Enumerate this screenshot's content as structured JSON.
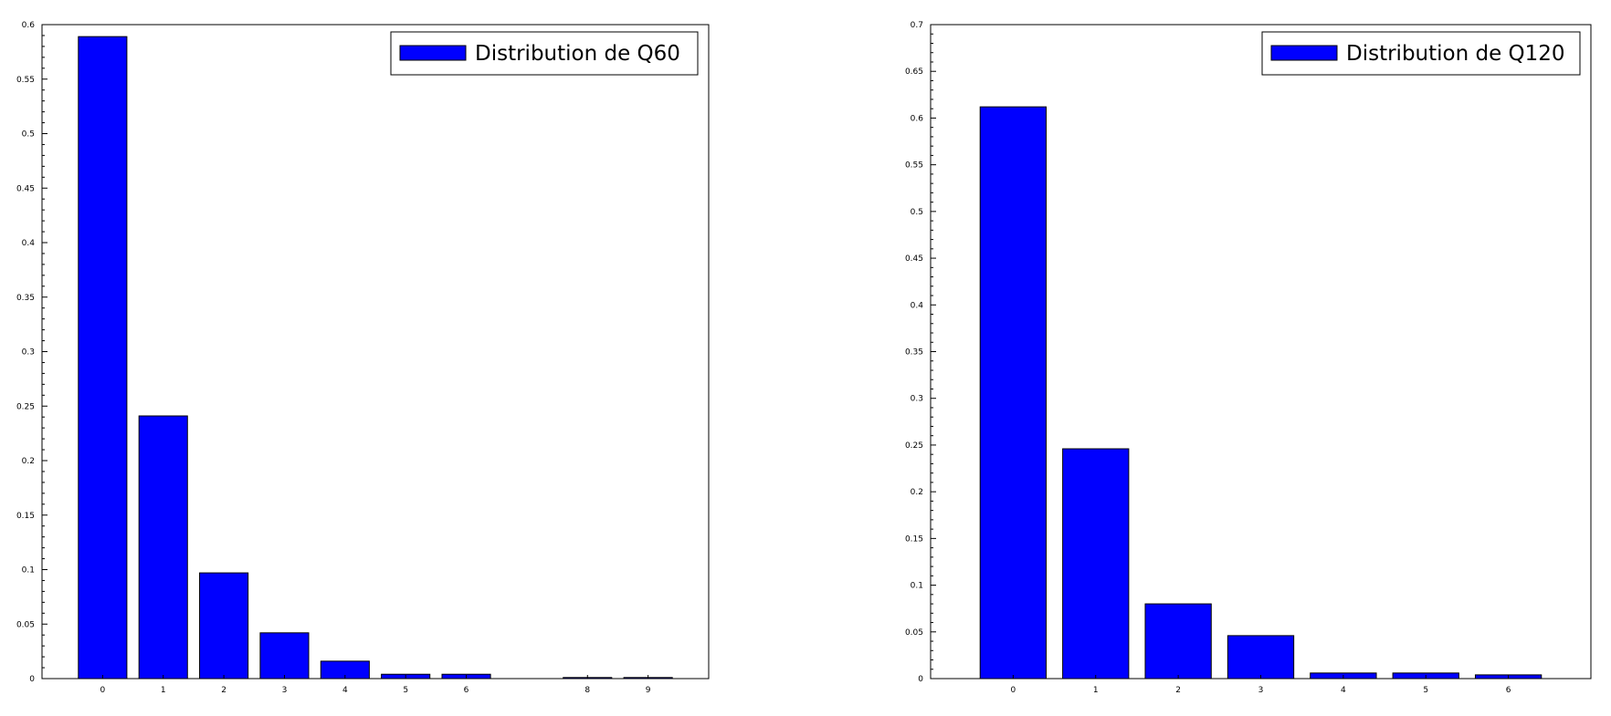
{
  "chart_data": [
    {
      "type": "bar",
      "categories": [
        0,
        1,
        2,
        3,
        4,
        5,
        6,
        8,
        9
      ],
      "x_ticks": [
        "0",
        "1",
        "2",
        "3",
        "4",
        "5",
        "6",
        "8",
        "9"
      ],
      "xlim": [
        -1,
        10
      ],
      "ylim": [
        0,
        0.6
      ],
      "y_ticks": [
        0,
        0.05,
        0.1,
        0.15,
        0.2,
        0.25,
        0.3,
        0.35,
        0.4,
        0.45,
        0.5,
        0.55,
        0.6
      ],
      "y_tick_labels": [
        "0",
        "0.05",
        "0.1",
        "0.15",
        "0.2",
        "0.25",
        "0.3",
        "0.35",
        "0.4",
        "0.45",
        "0.5",
        "0.55",
        "0.6"
      ],
      "series": [
        {
          "name": "Distribution de Q60",
          "values": [
            0.589,
            0.241,
            0.097,
            0.042,
            0.016,
            0.004,
            0.004,
            0.001,
            0.001
          ]
        }
      ],
      "legend": {
        "position": "top-right",
        "label": "Distribution de Q60"
      },
      "grid": false,
      "bar_color": "#0000ff",
      "title": "",
      "xlabel": "",
      "ylabel": ""
    },
    {
      "type": "bar",
      "categories": [
        0,
        1,
        2,
        3,
        4,
        5,
        6
      ],
      "x_ticks": [
        "0",
        "1",
        "2",
        "3",
        "4",
        "5",
        "6"
      ],
      "xlim": [
        -1,
        7
      ],
      "ylim": [
        0,
        0.7
      ],
      "y_ticks": [
        0,
        0.05,
        0.1,
        0.15,
        0.2,
        0.25,
        0.3,
        0.35,
        0.4,
        0.45,
        0.5,
        0.55,
        0.6,
        0.65,
        0.7
      ],
      "y_tick_labels": [
        "0",
        "0.05",
        "0.1",
        "0.15",
        "0.2",
        "0.25",
        "0.3",
        "0.35",
        "0.4",
        "0.45",
        "0.5",
        "0.55",
        "0.6",
        "0.65",
        "0.7"
      ],
      "series": [
        {
          "name": "Distribution de Q120",
          "values": [
            0.612,
            0.246,
            0.08,
            0.046,
            0.006,
            0.006,
            0.004
          ]
        }
      ],
      "legend": {
        "position": "top-right",
        "label": "Distribution de Q120"
      },
      "grid": false,
      "bar_color": "#0000ff",
      "title": "",
      "xlabel": "",
      "ylabel": ""
    }
  ]
}
